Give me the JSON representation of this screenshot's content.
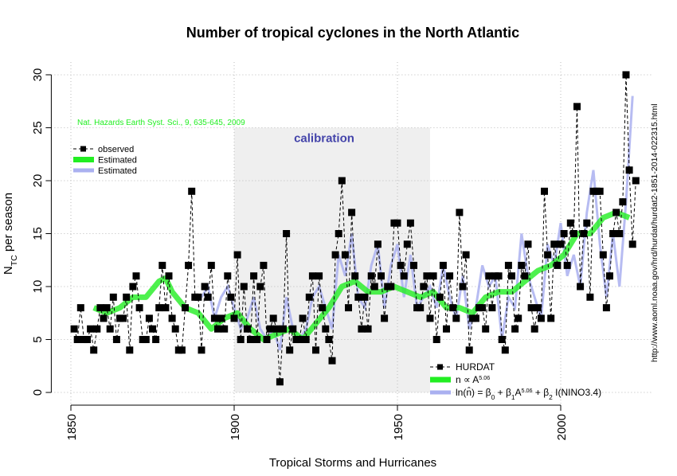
{
  "chart_data": {
    "type": "line",
    "title": "Number of tropical cyclones in the North Atlantic",
    "xlabel": "Tropical Storms and Hurricanes",
    "ylabel_parts": [
      {
        "text": "N"
      },
      {
        "sub": "TC"
      },
      {
        "text": " per season"
      }
    ],
    "xlim": [
      1844,
      2028
    ],
    "ylim": [
      -1.2,
      31.2
    ],
    "xticks": [
      1850,
      1900,
      1950,
      2000
    ],
    "yticks": [
      0,
      5,
      10,
      15,
      20,
      25,
      30
    ],
    "grid": true,
    "calibration": {
      "label": "calibration",
      "x": [
        1900,
        1960
      ],
      "y": [
        0,
        25
      ],
      "color": "#efefef"
    },
    "annotations": {
      "source": "Nat. Hazards Earth Syst. Sci., 9, 635-645, 2009",
      "url": "http://www.aoml.noaa.gov/hrd/hurdat/hurdat2-1851-2014-022315.html"
    },
    "legend_top": [
      "observed",
      "Estimated",
      "Estimated"
    ],
    "series": [
      {
        "name": "HURDAT",
        "color": "#000000",
        "x": [
          1851,
          1852,
          1853,
          1854,
          1855,
          1856,
          1857,
          1858,
          1859,
          1860,
          1861,
          1862,
          1863,
          1864,
          1865,
          1866,
          1867,
          1868,
          1869,
          1870,
          1871,
          1872,
          1873,
          1874,
          1875,
          1876,
          1877,
          1878,
          1879,
          1880,
          1881,
          1882,
          1883,
          1884,
          1885,
          1886,
          1887,
          1888,
          1889,
          1890,
          1891,
          1892,
          1893,
          1894,
          1895,
          1896,
          1897,
          1898,
          1899,
          1900,
          1901,
          1902,
          1903,
          1904,
          1905,
          1906,
          1907,
          1908,
          1909,
          1910,
          1911,
          1912,
          1913,
          1914,
          1915,
          1916,
          1917,
          1918,
          1919,
          1920,
          1921,
          1922,
          1923,
          1924,
          1925,
          1926,
          1927,
          1928,
          1929,
          1930,
          1931,
          1932,
          1933,
          1934,
          1935,
          1936,
          1937,
          1938,
          1939,
          1940,
          1941,
          1942,
          1943,
          1944,
          1945,
          1946,
          1947,
          1948,
          1949,
          1950,
          1951,
          1952,
          1953,
          1954,
          1955,
          1956,
          1957,
          1958,
          1959,
          1960,
          1961,
          1962,
          1963,
          1964,
          1965,
          1966,
          1967,
          1968,
          1969,
          1970,
          1971,
          1972,
          1973,
          1974,
          1975,
          1976,
          1977,
          1978,
          1979,
          1980,
          1981,
          1982,
          1983,
          1984,
          1985,
          1986,
          1987,
          1988,
          1989,
          1990,
          1991,
          1992,
          1993,
          1994,
          1995,
          1996,
          1997,
          1998,
          1999,
          2000,
          2001,
          2002,
          2003,
          2004,
          2005,
          2006,
          2007,
          2008,
          2009,
          2010,
          2011,
          2012,
          2013,
          2014,
          2015,
          2016,
          2017,
          2018,
          2019,
          2020,
          2021,
          2022,
          2023
        ],
        "values": [
          6,
          5,
          8,
          5,
          5,
          6,
          4,
          6,
          8,
          7,
          8,
          6,
          9,
          5,
          7,
          7,
          9,
          4,
          10,
          11,
          8,
          5,
          5,
          7,
          6,
          5,
          8,
          12,
          8,
          11,
          7,
          6,
          4,
          4,
          8,
          12,
          19,
          9,
          9,
          4,
          10,
          9,
          12,
          7,
          6,
          7,
          6,
          11,
          9,
          7,
          13,
          5,
          10,
          6,
          5,
          11,
          5,
          10,
          12,
          5,
          6,
          7,
          6,
          1,
          6,
          15,
          4,
          6,
          5,
          5,
          7,
          5,
          9,
          11,
          4,
          11,
          8,
          6,
          5,
          3,
          13,
          15,
          20,
          13,
          8,
          17,
          11,
          9,
          6,
          9,
          6,
          11,
          10,
          14,
          11,
          7,
          10,
          10,
          16,
          16,
          12,
          11,
          14,
          16,
          12,
          8,
          8,
          10,
          11,
          7,
          11,
          5,
          9,
          12,
          6,
          11,
          8,
          7,
          17,
          10,
          13,
          4,
          7,
          7,
          8,
          8,
          6,
          11,
          8,
          11,
          11,
          5,
          4,
          12,
          11,
          6,
          7,
          12,
          11,
          14,
          8,
          6,
          8,
          7,
          19,
          13,
          7,
          14,
          12,
          14,
          15,
          12,
          16,
          15,
          27,
          10,
          15,
          16,
          9,
          19,
          19,
          19,
          13,
          8,
          11,
          15,
          17,
          15,
          18,
          30,
          21,
          14,
          20
        ]
      },
      {
        "label_parts": [
          {
            "text": "n ∝ A"
          },
          {
            "sup": "5.06"
          }
        ],
        "color": "#22ee22",
        "x": [
          1857,
          1861,
          1865,
          1869,
          1873,
          1877,
          1879,
          1881,
          1885,
          1889,
          1893,
          1897,
          1901,
          1905,
          1909,
          1913,
          1917,
          1921,
          1925,
          1929,
          1933,
          1937,
          1941,
          1945,
          1949,
          1953,
          1957,
          1961,
          1965,
          1969,
          1973,
          1977,
          1981,
          1985,
          1989,
          1993,
          1997,
          2001,
          2005,
          2009,
          2013,
          2017,
          2021
        ],
        "values": [
          8,
          7.5,
          8,
          9,
          9,
          10.5,
          10.8,
          9.5,
          8,
          7.5,
          6,
          7,
          7.5,
          6,
          5,
          5.5,
          6,
          5,
          6.5,
          8,
          10,
          10.5,
          9.5,
          9.5,
          10,
          9.5,
          9,
          9.5,
          8,
          8,
          7.5,
          9,
          9.5,
          9.5,
          10.5,
          11.5,
          12,
          13,
          15,
          15,
          16.5,
          17,
          16.5
        ]
      },
      {
        "label_parts": [
          {
            "text": "ln(n̂) = β"
          },
          {
            "sub": "0"
          },
          {
            "text": " + β"
          },
          {
            "sub": "1"
          },
          {
            "text": "A"
          },
          {
            "sup": "5.06"
          },
          {
            "text": " + β"
          },
          {
            "sub": "2"
          },
          {
            "text": " I(NINO3.4)"
          }
        ],
        "color": "#aab0f0",
        "x": [
          1890,
          1892,
          1894,
          1896,
          1898,
          1900,
          1902,
          1904,
          1906,
          1908,
          1910,
          1912,
          1914,
          1916,
          1918,
          1920,
          1922,
          1924,
          1926,
          1928,
          1930,
          1932,
          1934,
          1936,
          1938,
          1940,
          1942,
          1944,
          1946,
          1948,
          1950,
          1952,
          1954,
          1956,
          1958,
          1960,
          1962,
          1964,
          1966,
          1968,
          1970,
          1972,
          1974,
          1976,
          1978,
          1980,
          1982,
          1984,
          1986,
          1988,
          1990,
          1992,
          1994,
          1996,
          1998,
          2000,
          2002,
          2004,
          2006,
          2008,
          2010,
          2012,
          2014,
          2016,
          2018,
          2020,
          2022
        ],
        "values": [
          9,
          10,
          7,
          9,
          10,
          8,
          6,
          7,
          9,
          6,
          5,
          6,
          4,
          9,
          6,
          5,
          6,
          9,
          10,
          8,
          6,
          13,
          11,
          15,
          9,
          8,
          12,
          14,
          8,
          12,
          14,
          9,
          13,
          8,
          9,
          10,
          8,
          12,
          9,
          7,
          11,
          6,
          8,
          12,
          10,
          11,
          5,
          9,
          8,
          15,
          11,
          9,
          7,
          14,
          12,
          16,
          11,
          13,
          10,
          17,
          21,
          14,
          9,
          15,
          10,
          18,
          28
        ]
      }
    ]
  }
}
